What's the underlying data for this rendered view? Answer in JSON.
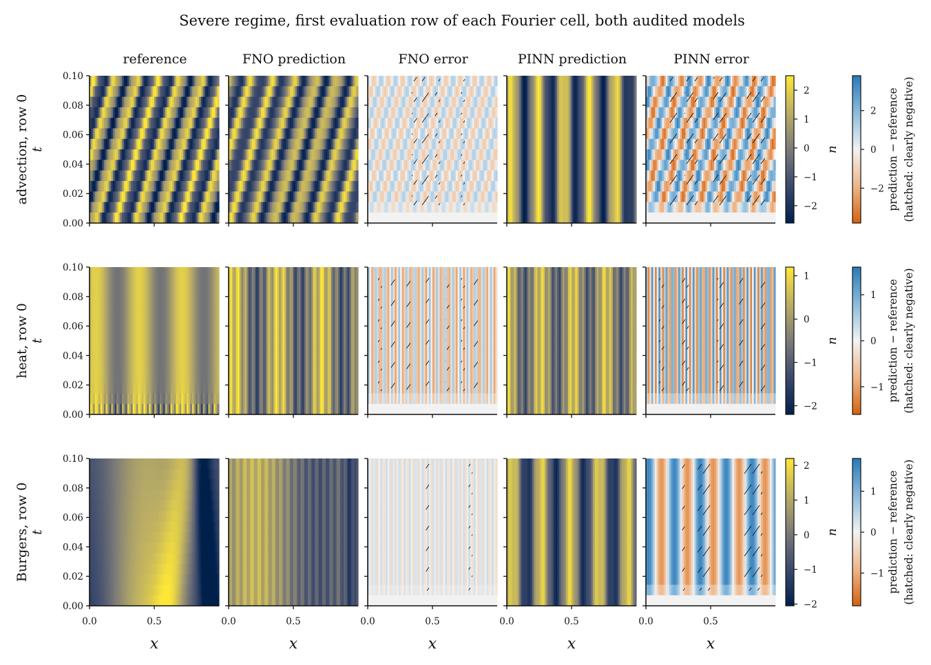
{
  "title": "Severe regime, first evaluation row of each Fourier cell, both audited models",
  "column_titles": [
    "reference",
    "FNO prediction",
    "FNO error",
    "PINN prediction",
    "PINN error"
  ],
  "row_labels": [
    "advection, row 0",
    "heat, row 0",
    "Burgers, row 0"
  ],
  "ylabel": "t",
  "xlabel": "x",
  "colorbar_u_label": "u",
  "colorbar_err_label_line1": "prediction − reference",
  "colorbar_err_label_line2": "(hatched: clearly negative)",
  "colors": {
    "cividis_low": "#00204c",
    "cividis_mid": "#7c7b78",
    "cividis_high": "#fde737",
    "diverging_negative": "#d6620f",
    "diverging_zero": "#f2f2f2",
    "diverging_positive": "#2a7ab8"
  },
  "chart_data": [
    {
      "type": "heatmap",
      "row": "advection, row 0",
      "xlim": [
        0.0,
        1.0
      ],
      "ylim": [
        0.0,
        0.1
      ],
      "x_ticks": [
        "0.0",
        "0.5"
      ],
      "y_ticks": [
        "0.00",
        "0.02",
        "0.04",
        "0.06",
        "0.08",
        "0.10"
      ],
      "u_colorbar": {
        "ticks": [
          "−2",
          "−1",
          "0",
          "1",
          "2"
        ],
        "range": [
          -2.6,
          2.5
        ]
      },
      "err_colorbar": {
        "ticks": [
          "−2",
          "0",
          "2"
        ],
        "range": [
          -3.8,
          3.8
        ]
      },
      "pattern": "slanted stripes drifting right over time; PINN prediction vertical stripes"
    },
    {
      "type": "heatmap",
      "row": "heat, row 0",
      "xlim": [
        0.0,
        1.0
      ],
      "ylim": [
        0.0,
        0.1
      ],
      "x_ticks": [
        "0.0",
        "0.5"
      ],
      "y_ticks": [
        "0.00",
        "0.02",
        "0.04",
        "0.06",
        "0.08",
        "0.10"
      ],
      "u_colorbar": {
        "ticks": [
          "−2",
          "−1",
          "0",
          "1"
        ],
        "range": [
          -2.2,
          1.2
        ]
      },
      "err_colorbar": {
        "ticks": [
          "−1",
          "0",
          "1"
        ],
        "range": [
          -1.6,
          1.6
        ]
      },
      "pattern": "vertical bands; high-frequency detail near t=0 in reference"
    },
    {
      "type": "heatmap",
      "row": "Burgers, row 0",
      "xlim": [
        0.0,
        1.0
      ],
      "ylim": [
        0.0,
        0.1
      ],
      "x_ticks": [
        "0.0",
        "0.5"
      ],
      "y_ticks": [
        "0.00",
        "0.02",
        "0.04",
        "0.06",
        "0.08",
        "0.10"
      ],
      "u_colorbar": {
        "ticks": [
          "−2",
          "−1",
          "0",
          "1",
          "2"
        ],
        "range": [
          -2.05,
          2.2
        ]
      },
      "err_colorbar": {
        "ticks": [
          "−1",
          "0",
          "1"
        ],
        "range": [
          -1.8,
          1.8
        ]
      },
      "pattern": "smooth steepening fronts in reference; vertical bands in predictions"
    }
  ]
}
